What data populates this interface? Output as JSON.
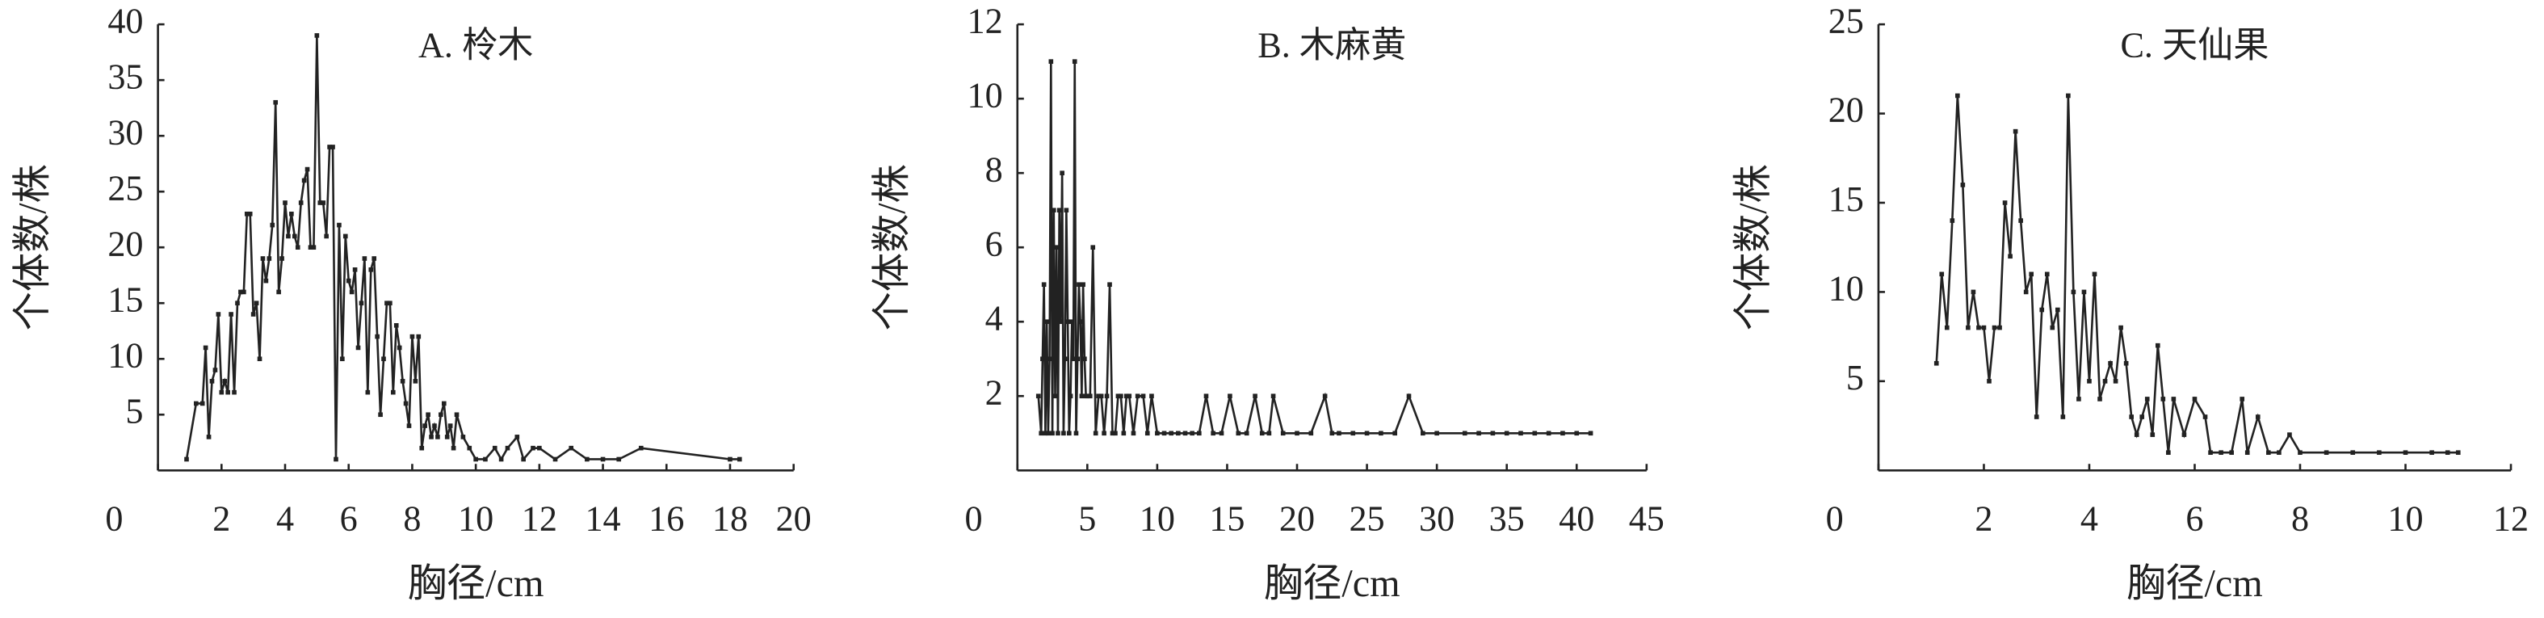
{
  "chart_data": [
    {
      "type": "line",
      "title": "A. 柃木",
      "xlabel": "胸径/cm",
      "ylabel": "个体数/株",
      "color": "#222222",
      "xlim": [
        0,
        20
      ],
      "xticks": [
        0,
        2,
        4,
        6,
        8,
        10,
        12,
        14,
        16,
        18,
        20
      ],
      "ylim": [
        0,
        40
      ],
      "yticks": [
        5,
        10,
        15,
        20,
        25,
        30,
        35,
        40
      ],
      "x": [
        0.9,
        1.2,
        1.4,
        1.5,
        1.6,
        1.7,
        1.8,
        1.9,
        2.0,
        2.1,
        2.2,
        2.3,
        2.4,
        2.5,
        2.6,
        2.7,
        2.8,
        2.9,
        3.0,
        3.1,
        3.2,
        3.3,
        3.4,
        3.5,
        3.6,
        3.7,
        3.8,
        3.9,
        4.0,
        4.1,
        4.2,
        4.3,
        4.4,
        4.5,
        4.6,
        4.7,
        4.8,
        4.9,
        5.0,
        5.1,
        5.2,
        5.3,
        5.4,
        5.5,
        5.6,
        5.7,
        5.8,
        5.9,
        6.0,
        6.1,
        6.2,
        6.3,
        6.4,
        6.5,
        6.6,
        6.7,
        6.8,
        6.9,
        7.0,
        7.1,
        7.2,
        7.3,
        7.4,
        7.5,
        7.6,
        7.7,
        7.8,
        7.9,
        8.0,
        8.1,
        8.2,
        8.3,
        8.4,
        8.5,
        8.6,
        8.7,
        8.8,
        8.9,
        9.0,
        9.1,
        9.2,
        9.3,
        9.4,
        9.6,
        9.8,
        10.0,
        10.3,
        10.6,
        10.8,
        11.0,
        11.3,
        11.5,
        11.8,
        12.0,
        12.5,
        13.0,
        13.5,
        14.0,
        14.5,
        15.2,
        18.0,
        18.3
      ],
      "values": [
        1,
        6,
        6,
        11,
        3,
        8,
        9,
        14,
        7,
        8,
        7,
        14,
        7,
        15,
        16,
        16,
        23,
        23,
        14,
        15,
        10,
        19,
        17,
        19,
        22,
        33,
        16,
        19,
        24,
        21,
        23,
        21,
        20,
        24,
        26,
        27,
        20,
        20,
        39,
        24,
        24,
        21,
        29,
        29,
        1,
        22,
        10,
        21,
        17,
        16,
        18,
        11,
        15,
        19,
        7,
        18,
        19,
        12,
        5,
        10,
        15,
        15,
        7,
        13,
        11,
        8,
        6,
        4,
        12,
        8,
        12,
        2,
        4,
        5,
        3,
        4,
        3,
        5,
        6,
        3,
        4,
        2,
        5,
        3,
        2,
        1,
        1,
        2,
        1,
        2,
        3,
        1,
        2,
        2,
        1,
        2,
        1,
        1,
        1,
        2,
        1,
        1
      ]
    },
    {
      "type": "line",
      "title": "B. 木麻黄",
      "xlabel": "胸径/cm",
      "ylabel": "个体数/株",
      "color": "#222222",
      "xlim": [
        0,
        45
      ],
      "xticks": [
        0,
        5,
        10,
        15,
        20,
        25,
        30,
        35,
        40,
        45
      ],
      "ylim": [
        0,
        12
      ],
      "yticks": [
        2,
        4,
        6,
        8,
        10,
        12
      ],
      "x": [
        1.5,
        1.7,
        1.8,
        1.9,
        2.0,
        2.1,
        2.2,
        2.3,
        2.4,
        2.5,
        2.6,
        2.7,
        2.8,
        2.9,
        3.0,
        3.1,
        3.2,
        3.3,
        3.4,
        3.5,
        3.6,
        3.7,
        3.8,
        3.9,
        4.0,
        4.1,
        4.2,
        4.3,
        4.4,
        4.5,
        4.6,
        4.7,
        4.8,
        4.9,
        5.0,
        5.2,
        5.4,
        5.6,
        5.8,
        6.0,
        6.2,
        6.4,
        6.6,
        6.8,
        7.0,
        7.2,
        7.4,
        7.6,
        7.8,
        8.0,
        8.3,
        8.6,
        9.0,
        9.3,
        9.6,
        10,
        10.5,
        11,
        11.5,
        12,
        12.5,
        13,
        13.5,
        14,
        14.6,
        15.2,
        15.8,
        16.4,
        17,
        17.5,
        18,
        18.3,
        19,
        20,
        21,
        22,
        22.5,
        23,
        24,
        25,
        26,
        27,
        28,
        29,
        30,
        32,
        33,
        34,
        35,
        36,
        37,
        38,
        39,
        40,
        41
      ],
      "values": [
        2,
        1,
        3,
        5,
        1,
        4,
        1,
        3,
        11,
        1,
        7,
        2,
        6,
        1,
        7,
        4,
        8,
        1,
        3,
        7,
        4,
        1,
        2,
        4,
        3,
        11,
        1,
        3,
        5,
        4,
        2,
        5,
        3,
        2,
        2,
        2,
        6,
        1,
        2,
        2,
        1,
        2,
        5,
        1,
        1,
        2,
        2,
        1,
        2,
        2,
        1,
        2,
        2,
        1,
        2,
        1,
        1,
        1,
        1,
        1,
        1,
        1,
        2,
        1,
        1,
        2,
        1,
        1,
        2,
        1,
        1,
        2,
        1,
        1,
        1,
        2,
        1,
        1,
        1,
        1,
        1,
        1,
        2,
        1,
        1,
        1,
        1,
        1,
        1,
        1,
        1,
        1,
        1,
        1,
        1
      ]
    },
    {
      "type": "line",
      "title": "C. 天仙果",
      "xlabel": "胸径/cm",
      "ylabel": "个体数/株",
      "color": "#222222",
      "xlim": [
        0,
        12
      ],
      "xticks": [
        0,
        2,
        4,
        6,
        8,
        10,
        12
      ],
      "ylim": [
        0,
        25
      ],
      "yticks": [
        5,
        10,
        15,
        20,
        25
      ],
      "x": [
        1.1,
        1.2,
        1.3,
        1.4,
        1.5,
        1.6,
        1.7,
        1.8,
        1.9,
        2.0,
        2.1,
        2.2,
        2.3,
        2.4,
        2.5,
        2.6,
        2.7,
        2.8,
        2.9,
        3.0,
        3.1,
        3.2,
        3.3,
        3.4,
        3.5,
        3.6,
        3.7,
        3.8,
        3.9,
        4.0,
        4.1,
        4.2,
        4.3,
        4.4,
        4.5,
        4.6,
        4.7,
        4.8,
        4.9,
        5.0,
        5.1,
        5.2,
        5.3,
        5.4,
        5.5,
        5.6,
        5.8,
        6.0,
        6.2,
        6.3,
        6.5,
        6.7,
        6.9,
        7.0,
        7.2,
        7.4,
        7.6,
        7.8,
        8.0,
        8.5,
        9.0,
        9.5,
        10.0,
        10.5,
        10.8,
        11.0
      ],
      "values": [
        6,
        11,
        8,
        14,
        21,
        16,
        8,
        10,
        8,
        8,
        5,
        8,
        8,
        15,
        12,
        19,
        14,
        10,
        11,
        3,
        9,
        11,
        8,
        9,
        3,
        21,
        10,
        4,
        10,
        5,
        11,
        4,
        5,
        6,
        5,
        8,
        6,
        3,
        2,
        3,
        4,
        2,
        7,
        4,
        1,
        4,
        2,
        4,
        3,
        1,
        1,
        1,
        4,
        1,
        3,
        1,
        1,
        2,
        1,
        1,
        1,
        1,
        1,
        1,
        1,
        1
      ]
    }
  ]
}
